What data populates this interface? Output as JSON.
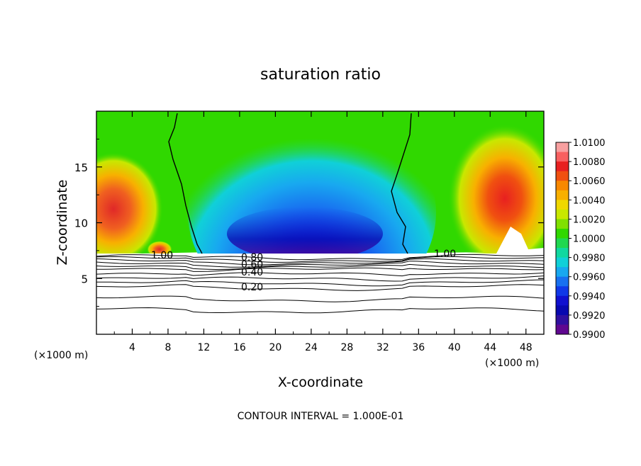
{
  "chart_data": {
    "type": "heatmap",
    "title": "saturation ratio",
    "xlabel": "X-coordinate",
    "ylabel": "Z-coordinate",
    "x_unit_left": "(×1000 m)",
    "x_unit_right": "(×1000 m)",
    "footer": "CONTOUR INTERVAL = 1.000E-01",
    "xlim": [
      0,
      50
    ],
    "ylim": [
      0,
      20
    ],
    "x_ticks": [
      4,
      8,
      12,
      16,
      20,
      24,
      28,
      32,
      36,
      40,
      44,
      48
    ],
    "y_ticks": [
      5,
      10,
      15
    ],
    "grid": false,
    "colorbar": {
      "levels": [
        "1.0100",
        "1.0080",
        "1.0060",
        "1.0040",
        "1.0020",
        "1.0000",
        "0.9980",
        "0.9960",
        "0.9940",
        "0.9920",
        "0.9900"
      ],
      "colors": [
        "#f8a0a0",
        "#f86060",
        "#e82020",
        "#f05010",
        "#f88800",
        "#f8b000",
        "#f0d800",
        "#c8e800",
        "#80e000",
        "#30d800",
        "#20d850",
        "#10d8a0",
        "#10d0d8",
        "#18a8f0",
        "#1870f0",
        "#1038e8",
        "#1010d0",
        "#0808b0",
        "#3010a0",
        "#600890"
      ]
    },
    "contour_lines": [
      {
        "label": "1.00",
        "level": 1.0
      },
      {
        "label": "0.80",
        "level": 0.8
      },
      {
        "label": "0.60",
        "level": 0.6
      },
      {
        "label": "0.40",
        "level": 0.4
      },
      {
        "label": "0.20",
        "level": 0.2
      }
    ]
  }
}
